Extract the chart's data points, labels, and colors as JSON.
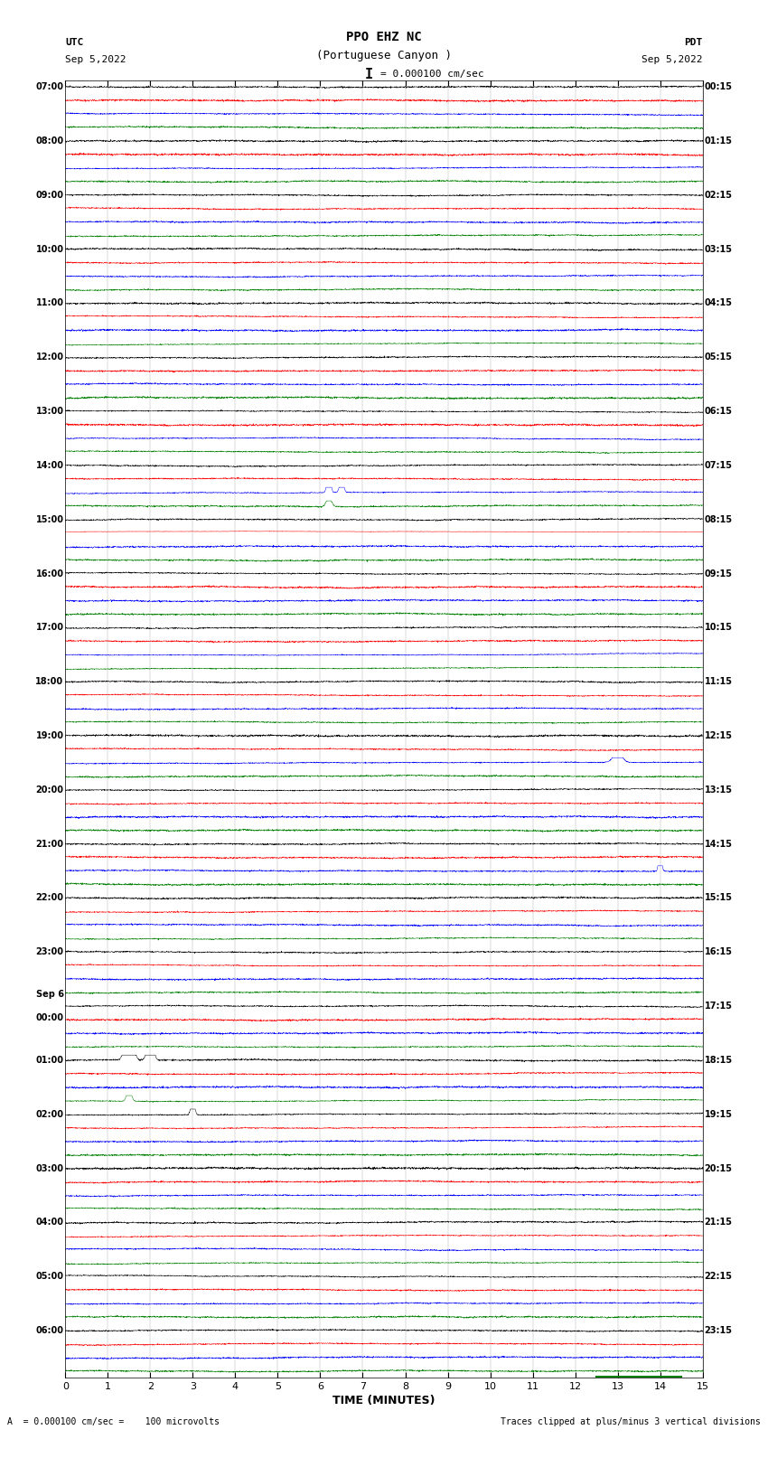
{
  "title_line1": "PPO EHZ NC",
  "title_line2": "(Portuguese Canyon )",
  "title_line3": "= 0.000100 cm/sec",
  "title_scale_marker": "I",
  "label_utc": "UTC",
  "label_pdt": "PDT",
  "date_left": "Sep 5,2022",
  "date_right": "Sep 5,2022",
  "xlabel": "TIME (MINUTES)",
  "footer_left": "A  = 0.000100 cm/sec =    100 microvolts",
  "footer_right": "Traces clipped at plus/minus 3 vertical divisions",
  "x_min": 0,
  "x_max": 15,
  "x_ticks": [
    0,
    1,
    2,
    3,
    4,
    5,
    6,
    7,
    8,
    9,
    10,
    11,
    12,
    13,
    14,
    15
  ],
  "n_rows": 96,
  "colors_cycle": [
    "black",
    "red",
    "blue",
    "green"
  ],
  "trace_amplitude": 0.38,
  "noise_scale": 0.13,
  "bg_color": "white",
  "fig_width": 8.5,
  "fig_height": 16.13,
  "dpi": 100,
  "left_labels_utc": [
    "07:00",
    "08:00",
    "09:00",
    "10:00",
    "11:00",
    "12:00",
    "13:00",
    "14:00",
    "15:00",
    "16:00",
    "17:00",
    "18:00",
    "19:00",
    "20:00",
    "21:00",
    "22:00",
    "23:00",
    "Sep 6\n00:00",
    "01:00",
    "02:00",
    "03:00",
    "04:00",
    "05:00",
    "06:00"
  ],
  "right_labels_pdt": [
    "00:15",
    "01:15",
    "02:15",
    "03:15",
    "04:15",
    "05:15",
    "06:15",
    "07:15",
    "08:15",
    "09:15",
    "10:15",
    "11:15",
    "12:15",
    "13:15",
    "14:15",
    "15:15",
    "16:15",
    "17:15",
    "18:15",
    "19:15",
    "20:15",
    "21:15",
    "22:15",
    "23:15"
  ],
  "label_rows": [
    0,
    4,
    8,
    12,
    16,
    20,
    24,
    28,
    32,
    36,
    40,
    44,
    48,
    52,
    56,
    60,
    64,
    68,
    72,
    76,
    80,
    84,
    88,
    92
  ],
  "n_pts": 3000,
  "lw": 0.35
}
